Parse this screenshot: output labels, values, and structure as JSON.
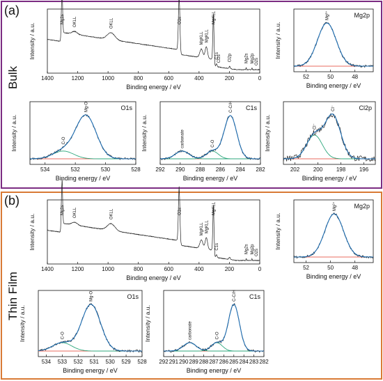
{
  "panel_labels": {
    "a": "(a)",
    "b": "(b)"
  },
  "row_labels": {
    "bulk": "Bulk",
    "film": "Thin Film"
  },
  "colors": {
    "envelope": "#1f6fb4",
    "raw": "#202020",
    "background": "#e03a2a",
    "component": "#2ca77c",
    "bulk_frame": "#7b2c82",
    "film_frame": "#d97a35"
  },
  "chart_data": [
    {
      "id": "bulk-survey",
      "type": "line",
      "title": "",
      "xlabel": "Binding energy / eV",
      "ylabel": "Intensity / a.u.",
      "xlim": [
        1400,
        0
      ],
      "xticks": [
        1400,
        1200,
        1000,
        800,
        600,
        400,
        200,
        0
      ],
      "annotations": [
        {
          "label": "Mg1s",
          "x": 1304
        },
        {
          "label": "OKLL",
          "x": 1220
        },
        {
          "label": "OKLL",
          "x": 980
        },
        {
          "label": "O1s",
          "x": 531
        },
        {
          "label": "MgKLL",
          "x": 385
        },
        {
          "label": "MgKLL",
          "x": 352
        },
        {
          "label": "MgKLL",
          "x": 305
        },
        {
          "label": "C1s",
          "x": 285
        },
        {
          "label": "Cl2s",
          "x": 270
        },
        {
          "label": "Cl2p",
          "x": 199
        },
        {
          "label": "Mg2s",
          "x": 89
        },
        {
          "label": "Mg2p",
          "x": 51
        },
        {
          "label": "O2s",
          "x": 24
        }
      ]
    },
    {
      "id": "bulk-mg2p",
      "type": "line",
      "title": "Mg2p",
      "xlabel": "Binding energy / eV",
      "ylabel": "Intensity / a.u.",
      "xlim": [
        53,
        46.5
      ],
      "xticks": [
        52,
        50,
        48
      ],
      "peaks": [
        {
          "label": "Mg²⁺",
          "center": 50.3,
          "fwhm": 1.8
        }
      ]
    },
    {
      "id": "bulk-o1s",
      "type": "line",
      "title": "O1s",
      "xlabel": "Binding energy / eV",
      "ylabel": "Intensity / a.u.",
      "xlim": [
        535,
        528
      ],
      "xticks": [
        534,
        532,
        530,
        528
      ],
      "peaks": [
        {
          "label": "Mg-O",
          "center": 531.3,
          "fwhm": 1.6
        },
        {
          "label": "C-O",
          "center": 532.8,
          "fwhm": 1.6
        }
      ]
    },
    {
      "id": "bulk-c1s",
      "type": "line",
      "title": "C1s",
      "xlabel": "Binding energy / eV",
      "ylabel": "Intensity / a.u.",
      "xlim": [
        292,
        282
      ],
      "xticks": [
        292,
        290,
        288,
        286,
        284,
        282
      ],
      "peaks": [
        {
          "label": "C-C/H",
          "center": 285.0,
          "fwhm": 1.5
        },
        {
          "label": "C-O",
          "center": 286.8,
          "fwhm": 1.4
        },
        {
          "label": "carbonate",
          "center": 289.8,
          "fwhm": 1.6
        }
      ]
    },
    {
      "id": "bulk-cl2p",
      "type": "line",
      "title": "Cl2p",
      "xlabel": "Binding energy / eV",
      "ylabel": "Intensity / a.u.",
      "xlim": [
        203,
        195
      ],
      "xticks": [
        202,
        200,
        198,
        196
      ],
      "peaks": [
        {
          "label": "Cl⁻",
          "center": 198.7,
          "fwhm": 1.6
        },
        {
          "label": "Cl⁻",
          "center": 200.3,
          "fwhm": 1.6
        }
      ]
    },
    {
      "id": "film-survey",
      "type": "line",
      "title": "",
      "xlabel": "Binding energy / eV",
      "ylabel": "Intensity / a.u.",
      "xlim": [
        1400,
        0
      ],
      "xticks": [
        1400,
        1200,
        1000,
        800,
        600,
        400,
        200,
        0
      ],
      "annotations": [
        {
          "label": "Mg1s",
          "x": 1304
        },
        {
          "label": "OKLL",
          "x": 1220
        },
        {
          "label": "OKLL",
          "x": 980
        },
        {
          "label": "O1s",
          "x": 531
        },
        {
          "label": "MgKLL",
          "x": 385
        },
        {
          "label": "MgKLL",
          "x": 352
        },
        {
          "label": "MgKLL",
          "x": 305
        },
        {
          "label": "C1s",
          "x": 285
        },
        {
          "label": "Mg2s",
          "x": 89
        },
        {
          "label": "Mg2p",
          "x": 51
        },
        {
          "label": "O2s",
          "x": 24
        }
      ]
    },
    {
      "id": "film-mg2p",
      "type": "line",
      "title": "Mg2p",
      "xlabel": "Binding energy / eV",
      "ylabel": "Intensity / a.u.",
      "xlim": [
        53,
        46.5
      ],
      "xticks": [
        52,
        50,
        48
      ],
      "peaks": [
        {
          "label": "Mg²⁺",
          "center": 49.7,
          "fwhm": 1.8
        }
      ]
    },
    {
      "id": "film-o1s",
      "type": "line",
      "title": "O1s",
      "xlabel": "Binding energy / eV",
      "ylabel": "Intensity / a.u.",
      "xlim": [
        534.5,
        528
      ],
      "xticks": [
        534,
        533,
        532,
        531,
        530,
        529,
        528
      ],
      "peaks": [
        {
          "label": "Mg-O",
          "center": 531.2,
          "fwhm": 1.4
        },
        {
          "label": "C-O",
          "center": 533.0,
          "fwhm": 1.4
        }
      ]
    },
    {
      "id": "film-c1s",
      "type": "line",
      "title": "C1s",
      "xlabel": "Binding energy / eV",
      "ylabel": "Intensity / a.u.",
      "xlim": [
        292,
        282
      ],
      "xticks": [
        292,
        291,
        290,
        289,
        288,
        287,
        286,
        285,
        284,
        283,
        282
      ],
      "peaks": [
        {
          "label": "C-C/H",
          "center": 285.0,
          "fwhm": 1.3
        },
        {
          "label": "C-O",
          "center": 286.7,
          "fwhm": 1.3
        },
        {
          "label": "carbonate",
          "center": 289.4,
          "fwhm": 1.5
        }
      ]
    }
  ]
}
